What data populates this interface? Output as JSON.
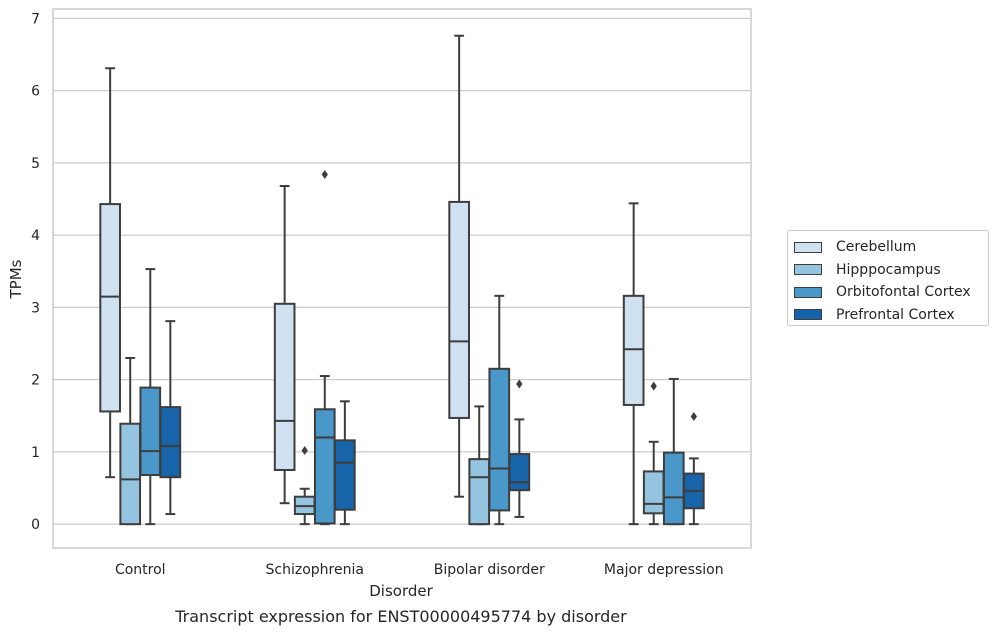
{
  "chart_data": {
    "type": "box",
    "title": "Transcript expression for ENST00000495774 by disorder",
    "xlabel": "Disorder",
    "ylabel": "TPMs",
    "ylim": [
      -0.33,
      7.13
    ],
    "yticks": [
      0,
      1,
      2,
      3,
      4,
      5,
      6,
      7
    ],
    "grid": true,
    "legend_position": "right",
    "categories": [
      "Control",
      "Schizophrenia",
      "Bipolar disorder",
      "Major depression"
    ],
    "series": [
      {
        "name": "Cerebellum",
        "color": "#d0e1f2",
        "boxes": [
          {
            "whislo": 0.65,
            "q1": 1.56,
            "med": 3.15,
            "q3": 4.43,
            "whishi": 6.31,
            "fliers": []
          },
          {
            "whislo": 0.29,
            "q1": 0.75,
            "med": 1.43,
            "q3": 3.05,
            "whishi": 4.68,
            "fliers": []
          },
          {
            "whislo": 0.38,
            "q1": 1.47,
            "med": 2.53,
            "q3": 4.46,
            "whishi": 6.76,
            "fliers": []
          },
          {
            "whislo": 0.0,
            "q1": 1.65,
            "med": 2.42,
            "q3": 3.16,
            "whishi": 4.44,
            "fliers": []
          }
        ]
      },
      {
        "name": "Hipppocampus",
        "color": "#94c4df",
        "boxes": [
          {
            "whislo": 0.0,
            "q1": 0.0,
            "med": 0.62,
            "q3": 1.39,
            "whishi": 2.3,
            "fliers": []
          },
          {
            "whislo": 0.0,
            "q1": 0.14,
            "med": 0.25,
            "q3": 0.38,
            "whishi": 0.49,
            "fliers": [
              1.02
            ]
          },
          {
            "whislo": 0.0,
            "q1": 0.0,
            "med": 0.65,
            "q3": 0.9,
            "whishi": 1.63,
            "fliers": []
          },
          {
            "whislo": 0.0,
            "q1": 0.15,
            "med": 0.28,
            "q3": 0.73,
            "whishi": 1.14,
            "fliers": [
              1.91
            ]
          }
        ]
      },
      {
        "name": "Orbitofontal Cortex",
        "color": "#4a98c9",
        "boxes": [
          {
            "whislo": 0.0,
            "q1": 0.68,
            "med": 1.01,
            "q3": 1.89,
            "whishi": 3.53,
            "fliers": []
          },
          {
            "whislo": 0.0,
            "q1": 0.01,
            "med": 1.2,
            "q3": 1.59,
            "whishi": 2.05,
            "fliers": [
              4.84
            ]
          },
          {
            "whislo": 0.0,
            "q1": 0.19,
            "med": 0.77,
            "q3": 2.15,
            "whishi": 3.16,
            "fliers": []
          },
          {
            "whislo": 0.0,
            "q1": 0.0,
            "med": 0.37,
            "q3": 0.99,
            "whishi": 2.01,
            "fliers": []
          }
        ]
      },
      {
        "name": "Prefrontal Cortex",
        "color": "#1764ab",
        "boxes": [
          {
            "whislo": 0.14,
            "q1": 0.65,
            "med": 1.08,
            "q3": 1.62,
            "whishi": 2.81,
            "fliers": []
          },
          {
            "whislo": 0.0,
            "q1": 0.2,
            "med": 0.85,
            "q3": 1.16,
            "whishi": 1.7,
            "fliers": []
          },
          {
            "whislo": 0.1,
            "q1": 0.47,
            "med": 0.58,
            "q3": 0.97,
            "whishi": 1.45,
            "fliers": [
              1.94
            ]
          },
          {
            "whislo": 0.0,
            "q1": 0.22,
            "med": 0.46,
            "q3": 0.7,
            "whishi": 0.91,
            "fliers": [
              1.49
            ]
          }
        ]
      }
    ]
  }
}
